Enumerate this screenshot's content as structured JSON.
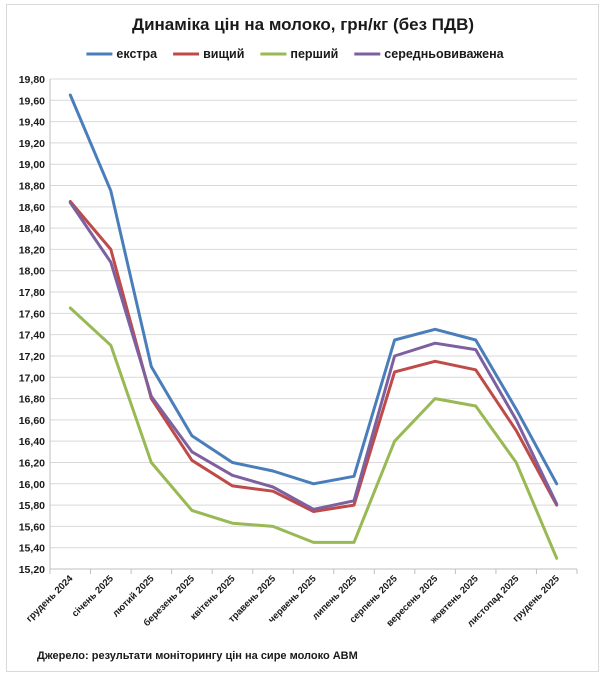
{
  "chart_data": {
    "type": "line",
    "title": "Динаміка цін на молоко, грн/кг (без ПДВ)",
    "xlabel": "",
    "ylabel": "",
    "ylim": [
      15.2,
      19.8
    ],
    "ystep": 0.2,
    "yticks": [
      "15,20",
      "15,40",
      "15,60",
      "15,80",
      "16,00",
      "16,20",
      "16,40",
      "16,60",
      "16,80",
      "17,00",
      "17,20",
      "17,40",
      "17,60",
      "17,80",
      "18,00",
      "18,20",
      "18,40",
      "18,60",
      "18,80",
      "19,00",
      "19,20",
      "19,40",
      "19,60",
      "19,80"
    ],
    "legend_position": "top",
    "grid": true,
    "categories": [
      "грудень 2024",
      "січень 2025",
      "лютий 2025",
      "березень 2025",
      "квітень 2025",
      "травень 2025",
      "червень 2025",
      "липень 2025",
      "серпень 2025",
      "вересень 2025",
      "жовтень 2025",
      "листопад 2025",
      "грудень 2025"
    ],
    "series": [
      {
        "name": "екстра",
        "color": "#4a7ebb",
        "values": [
          19.65,
          18.75,
          17.1,
          16.45,
          16.2,
          16.12,
          16.0,
          16.07,
          17.35,
          17.45,
          17.35,
          16.7,
          16.0
        ]
      },
      {
        "name": "вищий",
        "color": "#be4b48",
        "values": [
          18.65,
          18.2,
          16.8,
          16.22,
          15.98,
          15.93,
          15.74,
          15.8,
          17.05,
          17.15,
          17.07,
          16.5,
          15.8
        ]
      },
      {
        "name": "перший",
        "color": "#98b954",
        "values": [
          17.65,
          17.3,
          16.2,
          15.75,
          15.63,
          15.6,
          15.45,
          15.45,
          16.4,
          16.8,
          16.73,
          16.2,
          15.3
        ]
      },
      {
        "name": "середньовиважена",
        "color": "#7d60a0",
        "values": [
          18.64,
          18.08,
          16.82,
          16.3,
          16.08,
          15.97,
          15.76,
          15.84,
          17.2,
          17.32,
          17.26,
          16.6,
          15.81
        ]
      }
    ]
  },
  "source_text": "Джерело: результати моніторингу цін на сире молоко АВМ"
}
